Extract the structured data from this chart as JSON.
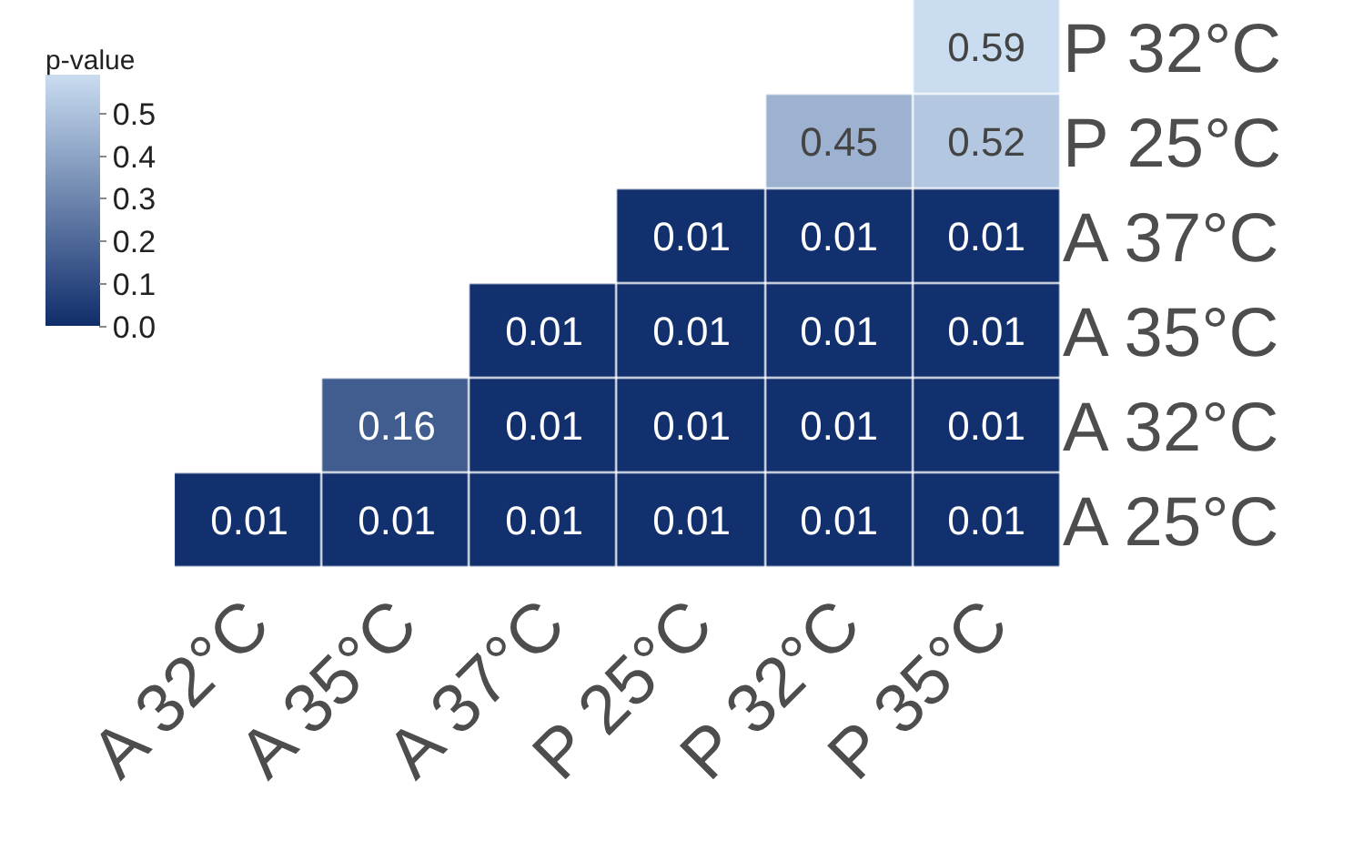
{
  "chart_data": {
    "type": "heatmap",
    "clabel": "p-value",
    "categories": [
      "A 32°C",
      "A 35°C",
      "A 37°C",
      "P 25°C",
      "P 32°C",
      "P 35°C"
    ],
    "y_categories": [
      "P 32°C",
      "P 25°C",
      "A 37°C",
      "A 35°C",
      "A 32°C",
      "A 25°C"
    ],
    "cells": [
      [
        null,
        null,
        null,
        null,
        null,
        0.59
      ],
      [
        null,
        null,
        null,
        null,
        0.45,
        0.52
      ],
      [
        null,
        null,
        null,
        0.01,
        0.01,
        0.01
      ],
      [
        null,
        null,
        0.01,
        0.01,
        0.01,
        0.01
      ],
      [
        null,
        0.16,
        0.01,
        0.01,
        0.01,
        0.01
      ],
      [
        0.01,
        0.01,
        0.01,
        0.01,
        0.01,
        0.01
      ]
    ],
    "clim": [
      0,
      0.59
    ],
    "cticks": [
      {
        "value": 0,
        "label": "0.0"
      },
      0.1,
      0.2,
      0.3,
      0.4,
      0.5
    ],
    "data_labels": true
  }
}
